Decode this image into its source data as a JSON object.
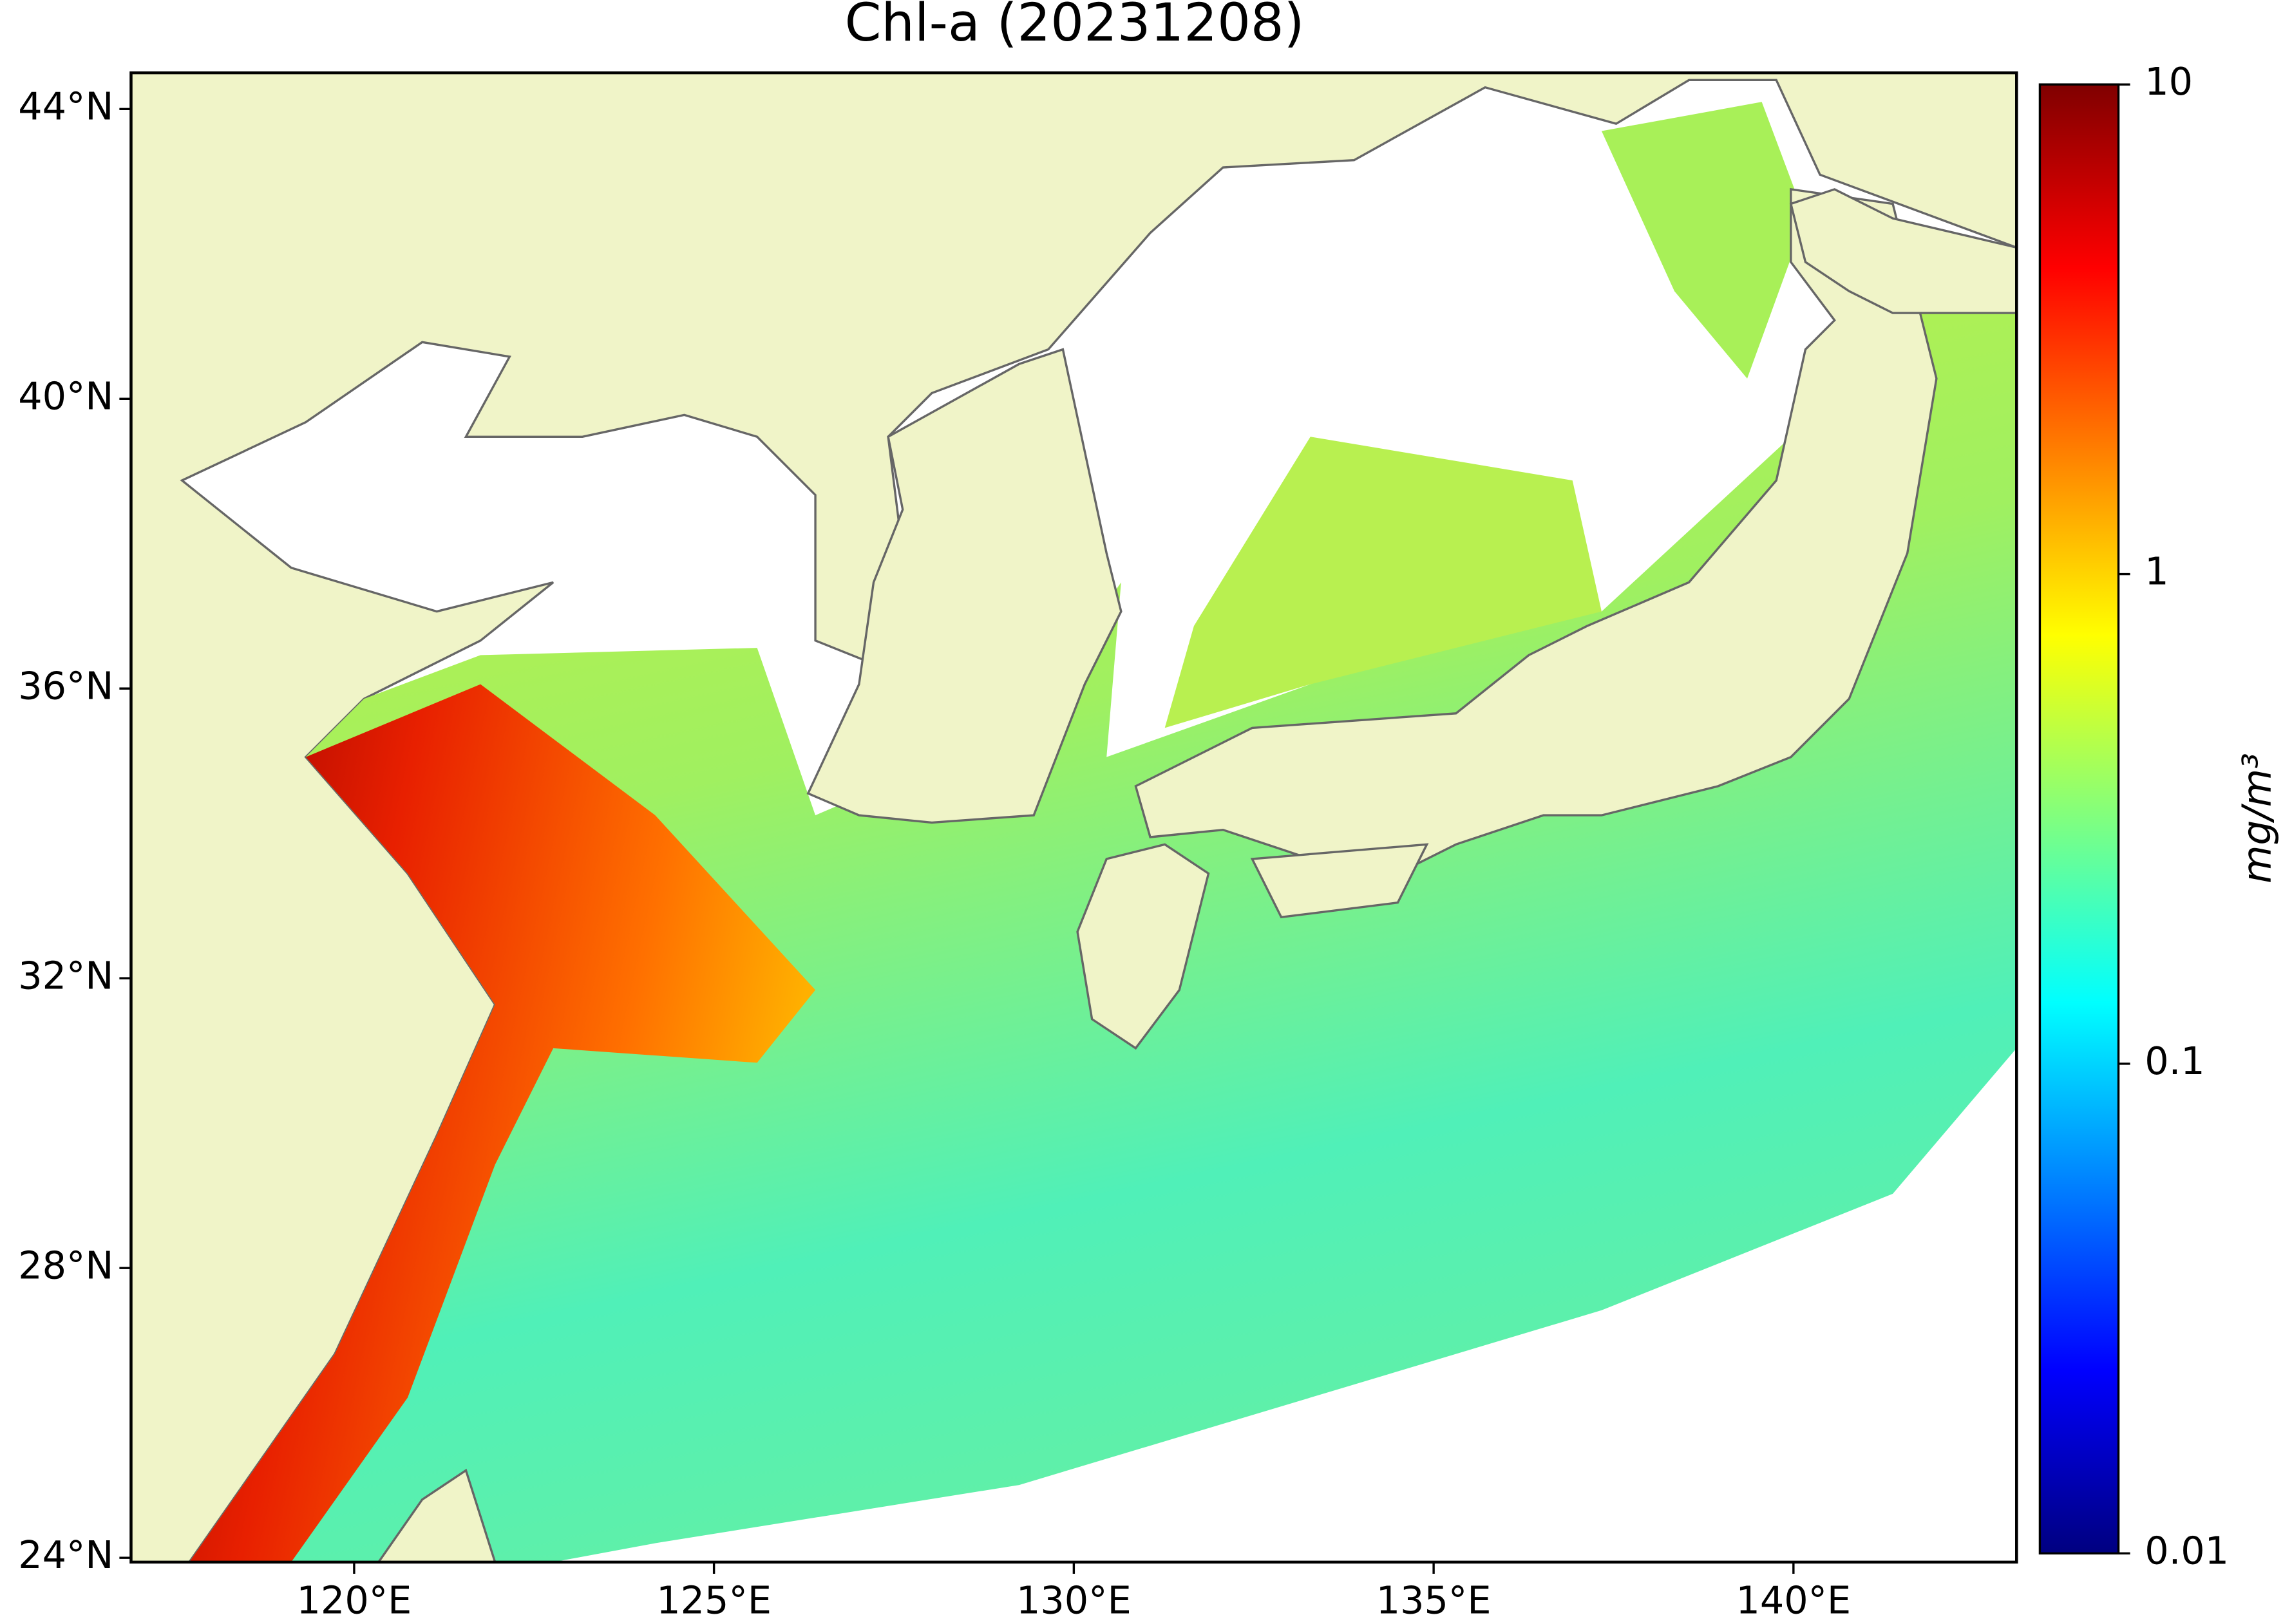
{
  "chart_data": {
    "type": "map",
    "title": "Chl-a (20231208)",
    "xlim": [
      116.9,
      143.1
    ],
    "ylim": [
      23.94,
      44.5
    ],
    "xticks": [
      {
        "value": 120,
        "label": "120°E"
      },
      {
        "value": 125,
        "label": "125°E"
      },
      {
        "value": 130,
        "label": "130°E"
      },
      {
        "value": 135,
        "label": "135°E"
      },
      {
        "value": 140,
        "label": "140°E"
      }
    ],
    "yticks": [
      {
        "value": 24,
        "label": "24°N"
      },
      {
        "value": 28,
        "label": "28°N"
      },
      {
        "value": 32,
        "label": "32°N"
      },
      {
        "value": 36,
        "label": "36°N"
      },
      {
        "value": 40,
        "label": "40°N"
      },
      {
        "value": 44,
        "label": "44°N"
      }
    ],
    "colorbar": {
      "label": "mg/m³",
      "scale": "log",
      "lim": [
        0.01,
        10
      ],
      "ticks": [
        0.01,
        0.1,
        1,
        10
      ]
    }
  }
}
